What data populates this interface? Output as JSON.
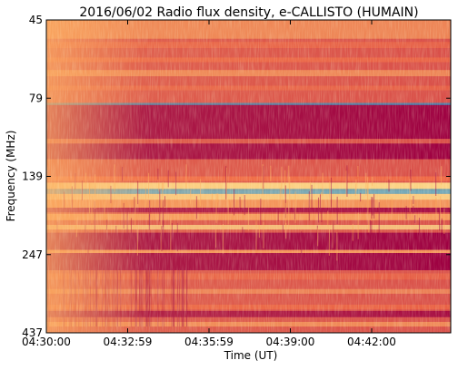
{
  "chart_data": {
    "type": "heatmap",
    "title": "2016/06/02  Radio flux density, e-CALLISTO (HUMAIN)",
    "xlabel": "Time (UT)",
    "ylabel": "Frequency (MHz)",
    "x_ticks": [
      "04:30:00",
      "04:32:59",
      "04:35:59",
      "04:39:00",
      "04:42:00"
    ],
    "y_ticks": [
      "45",
      "79",
      "139",
      "247",
      "437"
    ],
    "grid": false,
    "colormap": "Spectral",
    "colors": {
      "saturated_band": "#9e0142",
      "background": "#d9504a",
      "mid": "#f46d43",
      "hot": "#fdae61",
      "pale": "#fee08b",
      "whitish": "#fffbb8",
      "teal": "#3288bd"
    }
  }
}
